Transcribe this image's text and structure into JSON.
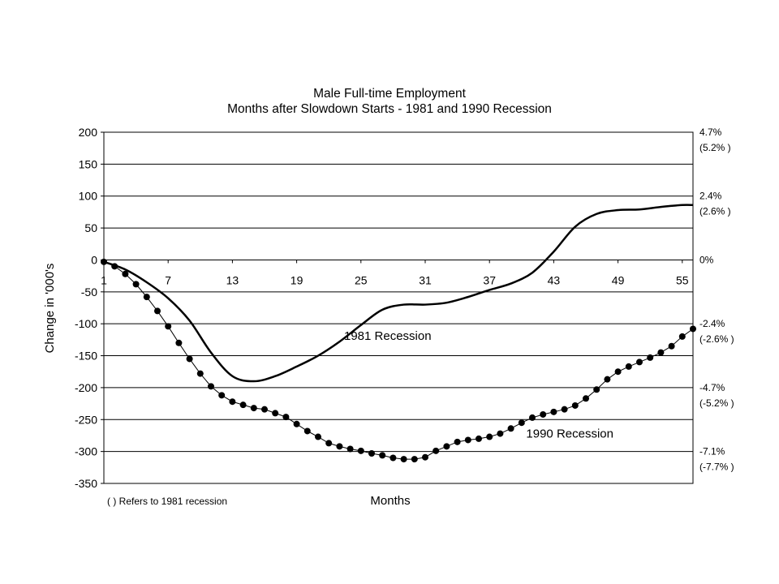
{
  "chart_data": {
    "type": "line",
    "title": "Male Full-time Employment",
    "subtitle": "Months after Slowdown Starts - 1981 and 1990 Recession",
    "xlabel": "Months",
    "ylabel": "Change in '000's",
    "xlim": [
      1,
      56
    ],
    "ylim": [
      -350,
      200
    ],
    "x_ticks": [
      1,
      7,
      13,
      19,
      25,
      31,
      37,
      43,
      49,
      55
    ],
    "y_ticks": [
      200,
      150,
      100,
      50,
      0,
      -50,
      -100,
      -150,
      -200,
      -250,
      -300,
      -350
    ],
    "grid": true,
    "right_axis_labels": [
      {
        "y": 200,
        "line1": "4.7%",
        "line2": "(5.2% )"
      },
      {
        "y": 100,
        "line1": "2.4%",
        "line2": "(2.6% )"
      },
      {
        "y": 0,
        "line1": "0%",
        "line2": ""
      },
      {
        "y": -100,
        "line1": "-2.4%",
        "line2": "(-2.6% )"
      },
      {
        "y": -200,
        "line1": "-4.7%",
        "line2": "(-5.2% )"
      },
      {
        "y": -300,
        "line1": "-7.1%",
        "line2": "(-7.7% )"
      }
    ],
    "note": "( ) Refers to 1981 recession",
    "series": [
      {
        "name": "1981 Recession",
        "x": [
          1,
          3,
          5,
          7,
          9,
          11,
          13,
          15,
          17,
          19,
          21,
          23,
          25,
          27,
          29,
          31,
          33,
          35,
          37,
          39,
          41,
          43,
          45,
          47,
          49,
          51,
          53,
          55,
          56
        ],
        "values": [
          -3,
          -15,
          -35,
          -60,
          -95,
          -145,
          -182,
          -190,
          -182,
          -167,
          -150,
          -128,
          -102,
          -78,
          -70,
          -70,
          -67,
          -58,
          -47,
          -37,
          -20,
          13,
          52,
          72,
          78,
          79,
          83,
          86,
          86
        ]
      },
      {
        "name": "1990 Recession",
        "x": [
          1,
          2,
          3,
          4,
          5,
          6,
          7,
          8,
          9,
          10,
          11,
          12,
          13,
          14,
          15,
          16,
          17,
          18,
          19,
          20,
          21,
          22,
          23,
          24,
          25,
          26,
          27,
          28,
          29,
          30,
          31,
          32,
          33,
          34,
          35,
          36,
          37,
          38,
          39,
          40,
          41,
          42,
          43,
          44,
          45,
          46,
          47,
          48,
          49,
          50,
          51,
          52,
          53,
          54,
          55,
          56
        ],
        "values": [
          -3,
          -10,
          -22,
          -38,
          -58,
          -80,
          -104,
          -130,
          -155,
          -178,
          -198,
          -212,
          -222,
          -227,
          -232,
          -234,
          -240,
          -246,
          -257,
          -268,
          -277,
          -287,
          -292,
          -296,
          -299,
          -303,
          -306,
          -310,
          -312,
          -312,
          -309,
          -299,
          -292,
          -285,
          -282,
          -280,
          -277,
          -272,
          -264,
          -255,
          -247,
          -242,
          -238,
          -234,
          -228,
          -217,
          -203,
          -187,
          -175,
          -167,
          -160,
          -153,
          -145,
          -135,
          -120,
          -108
        ]
      }
    ],
    "annotations": [
      {
        "text": "1981 Recession",
        "x": 27.5,
        "y": -125
      },
      {
        "text": "1990 Recession",
        "x": 44.5,
        "y": -278
      }
    ]
  }
}
